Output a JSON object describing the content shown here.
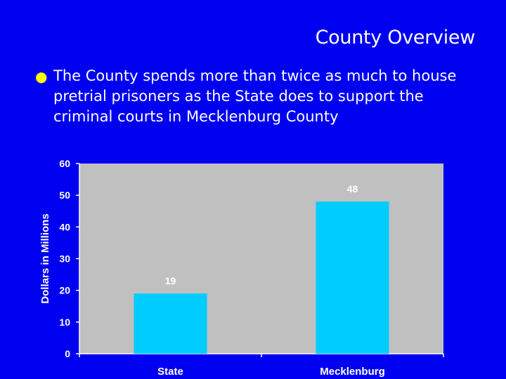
{
  "slide": {
    "title": "County Overview",
    "bullet": "The County spends more than twice as much to house pretrial prisoners as the State does to support the criminal courts in Mecklenburg County"
  },
  "colors": {
    "background": "#0000f0",
    "plot_area": "#c0c0c0",
    "bar": "#00ccff",
    "bullet": "#ffff00",
    "text": "#ffffff"
  },
  "chart_data": {
    "type": "bar",
    "categories": [
      "State",
      "Mecklenburg"
    ],
    "values": [
      19,
      48
    ],
    "data_labels": [
      "19",
      "48"
    ],
    "ylabel": "Dollars in Millions",
    "ylim": [
      0,
      60
    ],
    "yticks": [
      "0",
      "10",
      "20",
      "30",
      "40",
      "50",
      "60"
    ],
    "grid": false,
    "legend": "none"
  }
}
